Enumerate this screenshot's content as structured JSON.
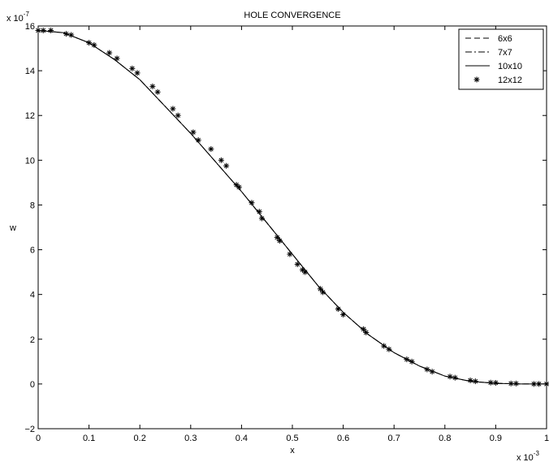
{
  "chart_data": {
    "type": "line",
    "title": "HOLE CONVERGENCE",
    "xlabel": "x",
    "ylabel": "w",
    "x_multiplier": {
      "base": "x 10",
      "exponent": "-3"
    },
    "y_multiplier": {
      "base": "x 10",
      "exponent": "-7"
    },
    "xlim": [
      0,
      1
    ],
    "ylim": [
      -2,
      16
    ],
    "x_ticks": [
      0,
      0.1,
      0.2,
      0.3,
      0.4,
      0.5,
      0.6,
      0.7,
      0.8,
      0.9,
      1
    ],
    "x_tick_labels": [
      "0",
      "0.1",
      "0.2",
      "0.3",
      "0.4",
      "0.5",
      "0.6",
      "0.7",
      "0.8",
      "0.9",
      "1"
    ],
    "y_ticks": [
      -2,
      0,
      2,
      4,
      6,
      8,
      10,
      12,
      14,
      16
    ],
    "y_tick_labels": [
      "−2",
      "0",
      "2",
      "4",
      "6",
      "8",
      "10",
      "12",
      "14",
      "16"
    ],
    "grid": false,
    "legend_position": "top-right",
    "series": [
      {
        "name": "6x6",
        "style": "dashed",
        "x": [
          0,
          0.05,
          0.1,
          0.15,
          0.2,
          0.25,
          0.3,
          0.35,
          0.4,
          0.45,
          0.5,
          0.55,
          0.6,
          0.65,
          0.7,
          0.75,
          0.8,
          0.85,
          0.9,
          0.95,
          1
        ],
        "y": [
          15.8,
          15.7,
          15.25,
          14.5,
          13.6,
          12.4,
          11.2,
          9.9,
          8.6,
          7.2,
          5.8,
          4.4,
          3.2,
          2.2,
          1.4,
          0.8,
          0.35,
          0.12,
          0.03,
          0.0,
          0.0
        ]
      },
      {
        "name": "7x7",
        "style": "dashdot",
        "x": [
          0,
          0.05,
          0.1,
          0.15,
          0.2,
          0.25,
          0.3,
          0.35,
          0.4,
          0.45,
          0.5,
          0.55,
          0.6,
          0.65,
          0.7,
          0.75,
          0.8,
          0.85,
          0.9,
          0.95,
          1
        ],
        "y": [
          15.8,
          15.7,
          15.25,
          14.5,
          13.6,
          12.4,
          11.2,
          9.9,
          8.6,
          7.2,
          5.8,
          4.4,
          3.2,
          2.2,
          1.4,
          0.8,
          0.35,
          0.12,
          0.03,
          0.0,
          0.0
        ]
      },
      {
        "name": "10x10",
        "style": "solid",
        "x": [
          0,
          0.05,
          0.1,
          0.15,
          0.2,
          0.25,
          0.3,
          0.35,
          0.4,
          0.45,
          0.5,
          0.55,
          0.6,
          0.65,
          0.7,
          0.75,
          0.8,
          0.85,
          0.9,
          0.95,
          1
        ],
        "y": [
          15.8,
          15.7,
          15.25,
          14.5,
          13.6,
          12.4,
          11.2,
          9.9,
          8.6,
          7.2,
          5.8,
          4.4,
          3.2,
          2.2,
          1.4,
          0.8,
          0.35,
          0.12,
          0.03,
          0.0,
          0.0
        ]
      },
      {
        "name": "12x12",
        "style": "markers",
        "marker": "*",
        "x": [
          0.0,
          0.01,
          0.025,
          0.055,
          0.065,
          0.1,
          0.11,
          0.14,
          0.155,
          0.185,
          0.195,
          0.225,
          0.235,
          0.265,
          0.275,
          0.305,
          0.315,
          0.34,
          0.36,
          0.37,
          0.39,
          0.395,
          0.42,
          0.435,
          0.44,
          0.47,
          0.475,
          0.495,
          0.51,
          0.52,
          0.525,
          0.555,
          0.56,
          0.59,
          0.6,
          0.64,
          0.645,
          0.68,
          0.69,
          0.725,
          0.735,
          0.765,
          0.775,
          0.81,
          0.82,
          0.85,
          0.86,
          0.89,
          0.9,
          0.93,
          0.94,
          0.975,
          0.985,
          1.0
        ],
        "y": [
          15.8,
          15.8,
          15.8,
          15.65,
          15.6,
          15.25,
          15.15,
          14.8,
          14.55,
          14.1,
          13.9,
          13.3,
          13.05,
          12.3,
          12.0,
          11.25,
          10.9,
          10.5,
          10.0,
          9.75,
          8.9,
          8.8,
          8.1,
          7.7,
          7.4,
          6.55,
          6.4,
          5.8,
          5.35,
          5.1,
          5.0,
          4.25,
          4.1,
          3.35,
          3.1,
          2.45,
          2.3,
          1.7,
          1.55,
          1.1,
          1.0,
          0.65,
          0.55,
          0.33,
          0.28,
          0.16,
          0.12,
          0.06,
          0.05,
          0.02,
          0.02,
          0.0,
          0.0,
          0.0
        ]
      }
    ]
  }
}
